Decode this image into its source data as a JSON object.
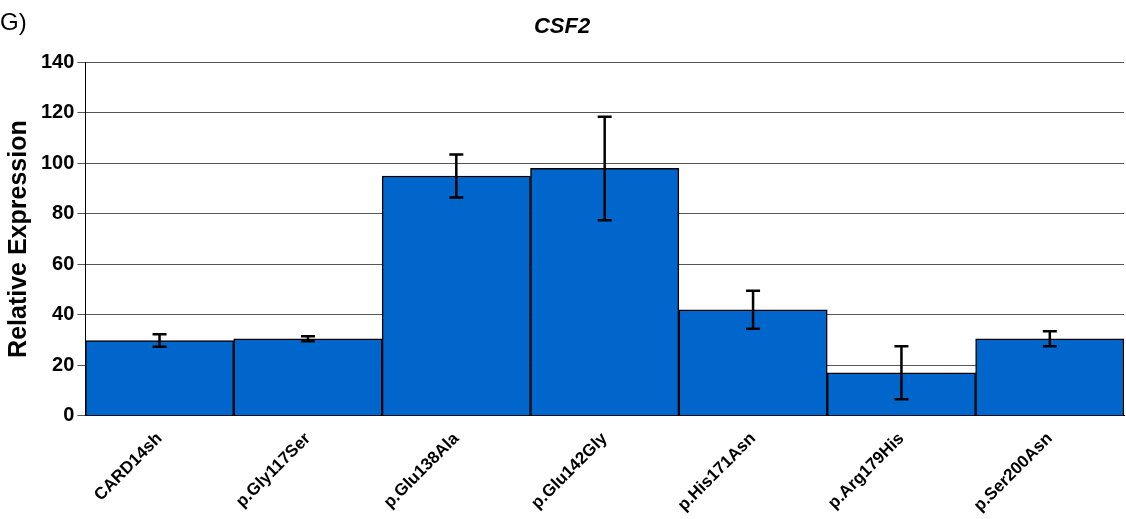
{
  "chart_data": {
    "type": "bar",
    "title": "CSF2",
    "ylabel": "Relative Expression",
    "annotations": [
      "G)"
    ],
    "categories": [
      "CARD14sh",
      "p.Gly117Ser",
      "p.Glu138Ala",
      "p.Glu142Gly",
      "p.His171Asn",
      "p.Arg179His",
      "p.Ser200Asn"
    ],
    "values": [
      29.8,
      30.5,
      95,
      98,
      42,
      17,
      30.5
    ],
    "errors": [
      2.5,
      1,
      8.5,
      20.5,
      7.5,
      10.5,
      3
    ],
    "color": "#0066cc",
    "ylim": [
      0,
      140
    ],
    "yticks": [
      0,
      20,
      40,
      60,
      80,
      100,
      120,
      140
    ],
    "grid": "y",
    "legend": false
  }
}
